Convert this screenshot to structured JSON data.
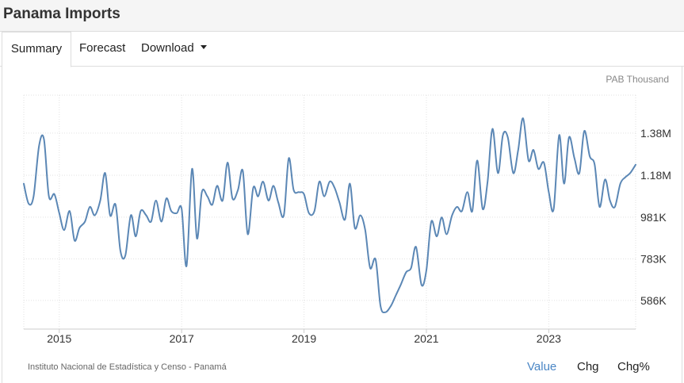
{
  "header": {
    "title": "Panama Imports"
  },
  "tabs": [
    {
      "label": "Summary",
      "active": true
    },
    {
      "label": "Forecast",
      "active": false
    },
    {
      "label": "Download",
      "active": false,
      "icon": "caret-down-icon"
    }
  ],
  "view_toggles": [
    {
      "label": "Value",
      "active": true
    },
    {
      "label": "Chg",
      "active": false
    },
    {
      "label": "Chg%",
      "active": false
    }
  ],
  "source": "Instituto Nacional de Estadística y Censo - Panamá",
  "colors": {
    "line": "#5b87b5",
    "grid": "#e2e2e2",
    "active_toggle": "#4a86c5"
  },
  "chart_data": {
    "type": "line",
    "unit_label": "PAB Thousand",
    "x_range": [
      2014.42,
      2024.42
    ],
    "ylim": [
      450,
      1560
    ],
    "y_ticks": [
      {
        "value": 586,
        "label": "586K"
      },
      {
        "value": 783,
        "label": "783K"
      },
      {
        "value": 981,
        "label": "981K"
      },
      {
        "value": 1180,
        "label": "1.18M"
      },
      {
        "value": 1380,
        "label": "1.38M"
      }
    ],
    "x_ticks": [
      {
        "value": 2015,
        "label": "2015"
      },
      {
        "value": 2017,
        "label": "2017"
      },
      {
        "value": 2019,
        "label": "2019"
      },
      {
        "value": 2021,
        "label": "2021"
      },
      {
        "value": 2023,
        "label": "2023"
      }
    ],
    "grid": true,
    "series": [
      {
        "points": [
          [
            2014.42,
            1140
          ],
          [
            2014.5,
            1045
          ],
          [
            2014.58,
            1080
          ],
          [
            2014.67,
            1320
          ],
          [
            2014.75,
            1350
          ],
          [
            2014.83,
            1080
          ],
          [
            2014.92,
            1090
          ],
          [
            2015.0,
            1000
          ],
          [
            2015.08,
            920
          ],
          [
            2015.17,
            1010
          ],
          [
            2015.25,
            870
          ],
          [
            2015.33,
            930
          ],
          [
            2015.42,
            960
          ],
          [
            2015.5,
            1030
          ],
          [
            2015.58,
            990
          ],
          [
            2015.67,
            1060
          ],
          [
            2015.75,
            1190
          ],
          [
            2015.83,
            990
          ],
          [
            2015.92,
            1040
          ],
          [
            2016.0,
            820
          ],
          [
            2016.08,
            800
          ],
          [
            2016.17,
            990
          ],
          [
            2016.25,
            890
          ],
          [
            2016.33,
            1010
          ],
          [
            2016.42,
            990
          ],
          [
            2016.5,
            960
          ],
          [
            2016.58,
            1060
          ],
          [
            2016.67,
            960
          ],
          [
            2016.75,
            1070
          ],
          [
            2016.83,
            1010
          ],
          [
            2016.92,
            1000
          ],
          [
            2017.0,
            1020
          ],
          [
            2017.08,
            750
          ],
          [
            2017.17,
            1210
          ],
          [
            2017.25,
            880
          ],
          [
            2017.33,
            1100
          ],
          [
            2017.42,
            1080
          ],
          [
            2017.5,
            1040
          ],
          [
            2017.58,
            1130
          ],
          [
            2017.67,
            1060
          ],
          [
            2017.75,
            1240
          ],
          [
            2017.83,
            1070
          ],
          [
            2017.92,
            1110
          ],
          [
            2018.0,
            1200
          ],
          [
            2018.08,
            900
          ],
          [
            2018.17,
            1120
          ],
          [
            2018.25,
            1080
          ],
          [
            2018.33,
            1150
          ],
          [
            2018.42,
            1060
          ],
          [
            2018.5,
            1130
          ],
          [
            2018.58,
            1050
          ],
          [
            2018.67,
            990
          ],
          [
            2018.75,
            1260
          ],
          [
            2018.83,
            1110
          ],
          [
            2018.92,
            1100
          ],
          [
            2019.0,
            1090
          ],
          [
            2019.08,
            1000
          ],
          [
            2019.17,
            1010
          ],
          [
            2019.25,
            1150
          ],
          [
            2019.33,
            1080
          ],
          [
            2019.42,
            1150
          ],
          [
            2019.5,
            1120
          ],
          [
            2019.58,
            1050
          ],
          [
            2019.67,
            970
          ],
          [
            2019.75,
            1140
          ],
          [
            2019.83,
            930
          ],
          [
            2019.92,
            990
          ],
          [
            2020.0,
            920
          ],
          [
            2020.08,
            740
          ],
          [
            2020.17,
            780
          ],
          [
            2020.25,
            560
          ],
          [
            2020.33,
            530
          ],
          [
            2020.42,
            560
          ],
          [
            2020.5,
            610
          ],
          [
            2020.58,
            660
          ],
          [
            2020.67,
            720
          ],
          [
            2020.75,
            740
          ],
          [
            2020.83,
            840
          ],
          [
            2020.92,
            660
          ],
          [
            2021.0,
            730
          ],
          [
            2021.08,
            960
          ],
          [
            2021.17,
            890
          ],
          [
            2021.25,
            980
          ],
          [
            2021.33,
            900
          ],
          [
            2021.42,
            990
          ],
          [
            2021.5,
            1030
          ],
          [
            2021.58,
            1010
          ],
          [
            2021.67,
            1100
          ],
          [
            2021.75,
            1010
          ],
          [
            2021.83,
            1250
          ],
          [
            2021.92,
            1020
          ],
          [
            2022.0,
            1150
          ],
          [
            2022.08,
            1400
          ],
          [
            2022.17,
            1190
          ],
          [
            2022.25,
            1370
          ],
          [
            2022.33,
            1360
          ],
          [
            2022.42,
            1190
          ],
          [
            2022.5,
            1300
          ],
          [
            2022.58,
            1450
          ],
          [
            2022.67,
            1250
          ],
          [
            2022.75,
            1300
          ],
          [
            2022.83,
            1210
          ],
          [
            2022.92,
            1240
          ],
          [
            2023.0,
            1100
          ],
          [
            2023.08,
            1020
          ],
          [
            2023.17,
            1370
          ],
          [
            2023.25,
            1140
          ],
          [
            2023.33,
            1360
          ],
          [
            2023.42,
            1260
          ],
          [
            2023.5,
            1190
          ],
          [
            2023.58,
            1390
          ],
          [
            2023.67,
            1270
          ],
          [
            2023.75,
            1230
          ],
          [
            2023.83,
            1030
          ],
          [
            2023.92,
            1160
          ],
          [
            2024.0,
            1060
          ],
          [
            2024.08,
            1030
          ],
          [
            2024.17,
            1140
          ],
          [
            2024.25,
            1170
          ],
          [
            2024.33,
            1190
          ],
          [
            2024.42,
            1230
          ]
        ]
      }
    ]
  }
}
